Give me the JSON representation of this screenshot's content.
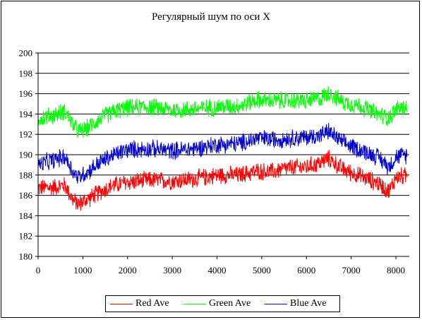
{
  "chart_data": {
    "type": "line",
    "title": "Регулярный шум по оси X",
    "xlabel": "",
    "ylabel": "",
    "xlim": [
      0,
      8300
    ],
    "ylim": [
      180,
      200
    ],
    "xticks": [
      0,
      1000,
      2000,
      3000,
      4000,
      5000,
      6000,
      7000,
      8000
    ],
    "yticks": [
      180,
      182,
      184,
      186,
      188,
      190,
      192,
      194,
      196,
      198,
      200
    ],
    "grid": "horizontal",
    "legend_position": "bottom",
    "noise_amplitude": 1.0,
    "series": [
      {
        "name": "Red Ave",
        "color": "#ff0000",
        "x": [
          0,
          300,
          600,
          800,
          900,
          1100,
          1400,
          1700,
          2000,
          2500,
          3000,
          3500,
          4000,
          4500,
          4900,
          5200,
          5600,
          6000,
          6300,
          6500,
          6800,
          7200,
          7600,
          7850,
          8000,
          8250
        ],
        "values": [
          186.7,
          186.8,
          187.0,
          185.4,
          185.2,
          185.6,
          186.4,
          187.0,
          187.3,
          187.5,
          187.4,
          187.6,
          188.0,
          188.0,
          188.4,
          188.3,
          188.7,
          188.8,
          189.2,
          189.6,
          188.6,
          187.9,
          187.2,
          186.4,
          187.8,
          187.9
        ]
      },
      {
        "name": "Green Ave",
        "color": "#00ff00",
        "x": [
          0,
          300,
          600,
          800,
          900,
          1100,
          1400,
          1700,
          2000,
          2500,
          3000,
          3500,
          4000,
          4500,
          4900,
          5200,
          5600,
          6000,
          6300,
          6500,
          6800,
          7200,
          7600,
          7850,
          8000,
          8250
        ],
        "values": [
          193.6,
          193.8,
          194.3,
          192.8,
          192.3,
          192.6,
          193.6,
          194.3,
          194.6,
          194.7,
          194.4,
          194.5,
          194.7,
          194.8,
          195.4,
          195.3,
          195.3,
          195.3,
          195.5,
          196.1,
          195.2,
          194.8,
          194.0,
          193.6,
          194.5,
          194.7
        ]
      },
      {
        "name": "Blue Ave",
        "color": "#0000cc",
        "x": [
          0,
          300,
          600,
          800,
          900,
          1100,
          1400,
          1700,
          2000,
          2500,
          3000,
          3500,
          4000,
          4500,
          4900,
          5200,
          5600,
          6000,
          6300,
          6500,
          6800,
          7200,
          7600,
          7850,
          8000,
          8250
        ],
        "values": [
          189.0,
          189.4,
          189.8,
          188.2,
          187.8,
          188.3,
          189.3,
          190.0,
          190.5,
          190.6,
          190.4,
          190.6,
          191.0,
          191.1,
          191.6,
          191.5,
          191.6,
          191.7,
          191.9,
          192.3,
          191.2,
          190.5,
          189.8,
          188.8,
          189.8,
          190.0
        ]
      }
    ]
  }
}
